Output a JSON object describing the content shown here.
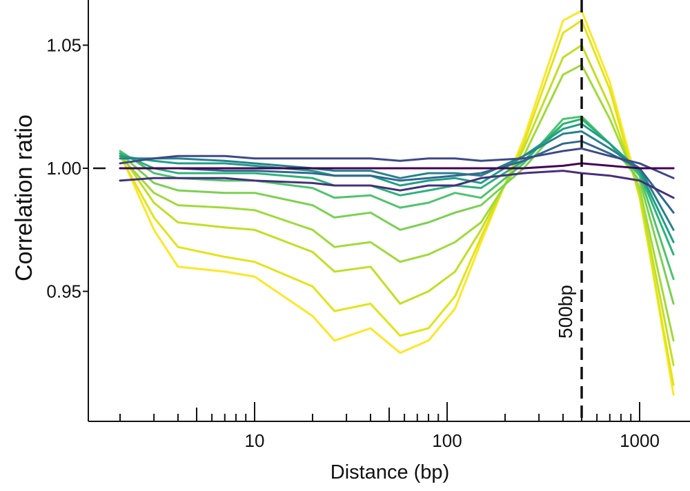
{
  "chart_data": {
    "type": "line",
    "title": "",
    "xlabel": "Distance (bp)",
    "ylabel": "Correlation ratio",
    "x_scale": "log",
    "xlim": [
      1.6,
      1550
    ],
    "ylim": [
      0.895,
      1.07
    ],
    "x_tick_labels": [
      "10",
      "100",
      "1000"
    ],
    "y_tick_labels": [
      "0.95",
      "1.00",
      "1.05"
    ],
    "y_ticks": [
      0.95,
      1.0,
      1.05
    ],
    "x_major_ticks": [
      10,
      100,
      1000
    ],
    "x_minor_ticks": [
      2,
      3,
      4,
      5,
      6,
      7,
      8,
      9,
      20,
      30,
      40,
      50,
      60,
      70,
      80,
      90,
      200,
      300,
      400,
      500,
      600,
      700,
      800,
      900
    ],
    "reference_line": {
      "y": 1.0,
      "style": "dashed"
    },
    "vline": {
      "x": 500,
      "label": "500bp",
      "style": "dashed"
    },
    "grid": false,
    "legend": "none",
    "colormap": "viridis",
    "series": [
      {
        "color": "#fde725",
        "values": [
          [
            2,
            1.006
          ],
          [
            3,
            0.975
          ],
          [
            4,
            0.96
          ],
          [
            7,
            0.958
          ],
          [
            10,
            0.956
          ],
          [
            20,
            0.94
          ],
          [
            26,
            0.93
          ],
          [
            40,
            0.935
          ],
          [
            57,
            0.925
          ],
          [
            80,
            0.93
          ],
          [
            110,
            0.943
          ],
          [
            150,
            0.97
          ],
          [
            250,
            1.012
          ],
          [
            400,
            1.06
          ],
          [
            500,
            1.064
          ],
          [
            700,
            1.035
          ],
          [
            1000,
            0.99
          ],
          [
            1500,
            0.908
          ]
        ]
      },
      {
        "color": "#e2e418",
        "values": [
          [
            2,
            1.005
          ],
          [
            3,
            0.98
          ],
          [
            4,
            0.968
          ],
          [
            7,
            0.964
          ],
          [
            10,
            0.962
          ],
          [
            20,
            0.952
          ],
          [
            26,
            0.942
          ],
          [
            40,
            0.945
          ],
          [
            57,
            0.932
          ],
          [
            80,
            0.935
          ],
          [
            110,
            0.948
          ],
          [
            150,
            0.972
          ],
          [
            250,
            1.01
          ],
          [
            400,
            1.055
          ],
          [
            500,
            1.06
          ],
          [
            700,
            1.032
          ],
          [
            1000,
            0.988
          ],
          [
            1500,
            0.912
          ]
        ]
      },
      {
        "color": "#c2df23",
        "values": [
          [
            2,
            1.006
          ],
          [
            3,
            0.986
          ],
          [
            4,
            0.978
          ],
          [
            7,
            0.976
          ],
          [
            10,
            0.975
          ],
          [
            20,
            0.966
          ],
          [
            26,
            0.958
          ],
          [
            40,
            0.96
          ],
          [
            57,
            0.945
          ],
          [
            80,
            0.95
          ],
          [
            110,
            0.958
          ],
          [
            150,
            0.975
          ],
          [
            250,
            1.008
          ],
          [
            400,
            1.045
          ],
          [
            500,
            1.05
          ],
          [
            700,
            1.025
          ],
          [
            1000,
            0.99
          ],
          [
            1500,
            0.92
          ]
        ]
      },
      {
        "color": "#a0da39",
        "values": [
          [
            2,
            1.005
          ],
          [
            3,
            0.99
          ],
          [
            4,
            0.985
          ],
          [
            7,
            0.984
          ],
          [
            10,
            0.983
          ],
          [
            20,
            0.975
          ],
          [
            26,
            0.968
          ],
          [
            40,
            0.97
          ],
          [
            57,
            0.962
          ],
          [
            80,
            0.965
          ],
          [
            110,
            0.97
          ],
          [
            150,
            0.978
          ],
          [
            250,
            1.005
          ],
          [
            400,
            1.038
          ],
          [
            500,
            1.042
          ],
          [
            700,
            1.02
          ],
          [
            1000,
            0.992
          ],
          [
            1500,
            0.93
          ]
        ]
      },
      {
        "color": "#7ad151",
        "values": [
          [
            2,
            1.006
          ],
          [
            3,
            0.994
          ],
          [
            4,
            0.991
          ],
          [
            7,
            0.99
          ],
          [
            10,
            0.99
          ],
          [
            20,
            0.985
          ],
          [
            26,
            0.98
          ],
          [
            40,
            0.982
          ],
          [
            57,
            0.975
          ],
          [
            80,
            0.978
          ],
          [
            110,
            0.982
          ],
          [
            150,
            0.985
          ],
          [
            250,
            1.0
          ],
          [
            400,
            1.018
          ],
          [
            500,
            1.02
          ],
          [
            700,
            1.01
          ],
          [
            1000,
            0.995
          ],
          [
            1500,
            0.945
          ]
        ]
      },
      {
        "color": "#4ec36b",
        "values": [
          [
            2,
            1.007
          ],
          [
            3,
            0.998
          ],
          [
            4,
            0.996
          ],
          [
            7,
            0.995
          ],
          [
            10,
            0.995
          ],
          [
            20,
            0.992
          ],
          [
            26,
            0.988
          ],
          [
            40,
            0.989
          ],
          [
            57,
            0.984
          ],
          [
            80,
            0.986
          ],
          [
            110,
            0.99
          ],
          [
            150,
            0.988
          ],
          [
            250,
            1.002
          ],
          [
            400,
            1.02
          ],
          [
            500,
            1.021
          ],
          [
            700,
            1.01
          ],
          [
            1000,
            0.997
          ],
          [
            1500,
            0.955
          ]
        ]
      },
      {
        "color": "#2db27d",
        "values": [
          [
            2,
            1.006
          ],
          [
            3,
            1.0
          ],
          [
            4,
            0.998
          ],
          [
            7,
            0.998
          ],
          [
            10,
            0.998
          ],
          [
            20,
            0.996
          ],
          [
            26,
            0.993
          ],
          [
            40,
            0.993
          ],
          [
            57,
            0.989
          ],
          [
            80,
            0.991
          ],
          [
            110,
            0.993
          ],
          [
            150,
            0.992
          ],
          [
            250,
            1.003
          ],
          [
            400,
            1.018
          ],
          [
            500,
            1.02
          ],
          [
            700,
            1.01
          ],
          [
            1000,
            0.998
          ],
          [
            1500,
            0.965
          ]
        ]
      },
      {
        "color": "#1f9e89",
        "values": [
          [
            2,
            1.005
          ],
          [
            3,
            1.003
          ],
          [
            4,
            1.002
          ],
          [
            7,
            1.002
          ],
          [
            10,
            1.001
          ],
          [
            20,
            0.999
          ],
          [
            26,
            0.997
          ],
          [
            40,
            0.997
          ],
          [
            57,
            0.993
          ],
          [
            80,
            0.995
          ],
          [
            110,
            0.996
          ],
          [
            150,
            0.994
          ],
          [
            250,
            1.005
          ],
          [
            400,
            1.016
          ],
          [
            500,
            1.018
          ],
          [
            700,
            1.01
          ],
          [
            1000,
            0.999
          ],
          [
            1500,
            0.97
          ]
        ]
      },
      {
        "color": "#26828e",
        "values": [
          [
            2,
            1.004
          ],
          [
            3,
            1.004
          ],
          [
            4,
            1.004
          ],
          [
            7,
            1.003
          ],
          [
            10,
            1.002
          ],
          [
            20,
            1.0
          ],
          [
            26,
            0.999
          ],
          [
            40,
            0.999
          ],
          [
            57,
            0.996
          ],
          [
            80,
            0.998
          ],
          [
            110,
            0.998
          ],
          [
            150,
            0.997
          ],
          [
            250,
            1.005
          ],
          [
            400,
            1.014
          ],
          [
            500,
            1.015
          ],
          [
            700,
            1.008
          ],
          [
            1000,
            1.0
          ],
          [
            1500,
            0.975
          ]
        ]
      },
      {
        "color": "#31688e",
        "values": [
          [
            2,
            1.0
          ],
          [
            3,
            1.0
          ],
          [
            4,
            1.0
          ],
          [
            7,
            0.999
          ],
          [
            10,
            0.999
          ],
          [
            20,
            0.998
          ],
          [
            26,
            0.997
          ],
          [
            40,
            0.997
          ],
          [
            57,
            0.995
          ],
          [
            80,
            0.996
          ],
          [
            110,
            0.997
          ],
          [
            150,
            0.998
          ],
          [
            250,
            1.003
          ],
          [
            400,
            1.01
          ],
          [
            500,
            1.011
          ],
          [
            700,
            1.006
          ],
          [
            1000,
            1.0
          ],
          [
            1500,
            0.982
          ]
        ]
      },
      {
        "color": "#3e4989",
        "values": [
          [
            2,
            1.002
          ],
          [
            3,
            1.004
          ],
          [
            4,
            1.005
          ],
          [
            7,
            1.005
          ],
          [
            10,
            1.004
          ],
          [
            20,
            1.004
          ],
          [
            26,
            1.004
          ],
          [
            40,
            1.004
          ],
          [
            57,
            1.003
          ],
          [
            80,
            1.004
          ],
          [
            110,
            1.004
          ],
          [
            150,
            1.003
          ],
          [
            250,
            1.004
          ],
          [
            400,
            1.007
          ],
          [
            500,
            1.008
          ],
          [
            700,
            1.005
          ],
          [
            1000,
            1.002
          ],
          [
            1500,
            0.996
          ]
        ]
      },
      {
        "color": "#472f7d",
        "values": [
          [
            2,
            0.995
          ],
          [
            3,
            0.996
          ],
          [
            4,
            0.996
          ],
          [
            7,
            0.996
          ],
          [
            10,
            0.995
          ],
          [
            20,
            0.994
          ],
          [
            26,
            0.993
          ],
          [
            40,
            0.993
          ],
          [
            57,
            0.991
          ],
          [
            80,
            0.993
          ],
          [
            110,
            0.993
          ],
          [
            150,
            0.996
          ],
          [
            250,
            0.998
          ],
          [
            400,
            0.999
          ],
          [
            500,
            0.998
          ],
          [
            700,
            0.997
          ],
          [
            1000,
            0.995
          ],
          [
            1500,
            0.988
          ]
        ]
      },
      {
        "color": "#440154",
        "values": [
          [
            2,
            1.0
          ],
          [
            3,
            1.0
          ],
          [
            4,
            1.0
          ],
          [
            7,
            1.0
          ],
          [
            10,
            1.0
          ],
          [
            20,
            1.0
          ],
          [
            26,
            1.0
          ],
          [
            40,
            1.0
          ],
          [
            57,
            1.0
          ],
          [
            80,
            1.0
          ],
          [
            110,
            1.0
          ],
          [
            150,
            1.0
          ],
          [
            250,
            1.0
          ],
          [
            400,
            1.001
          ],
          [
            500,
            1.002
          ],
          [
            700,
            1.001
          ],
          [
            1000,
            1.0
          ],
          [
            1500,
            1.0
          ]
        ]
      }
    ]
  }
}
